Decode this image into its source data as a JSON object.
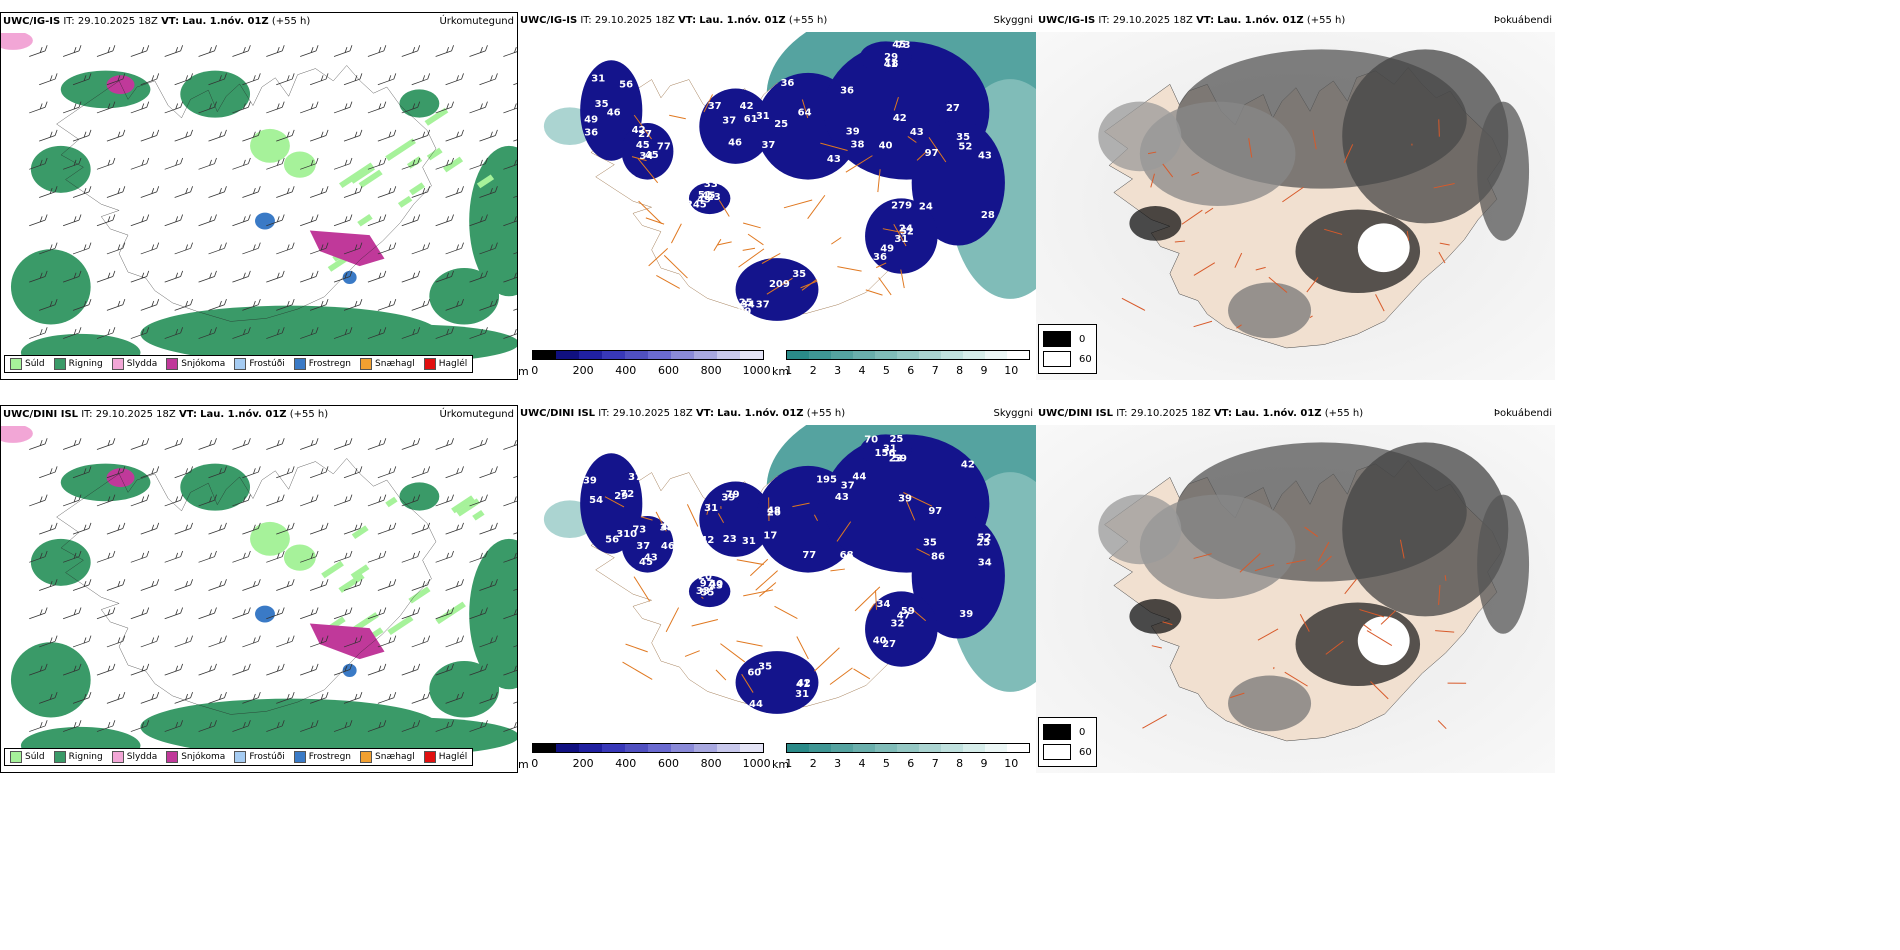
{
  "rows": [
    {
      "model": "UWC/IG-IS",
      "it_label": "IT:",
      "it": "29.10.2025 18Z",
      "vt_label": "VT:",
      "vt": "Lau. 1.nóv. 01Z",
      "lead": "(+55 h)",
      "cloud_labels": [
        "31",
        "77",
        "37",
        "43",
        "39",
        "97",
        "52",
        "37",
        "49",
        "73",
        "56",
        "42",
        "37",
        "36",
        "40",
        "35",
        "36",
        "35",
        "33",
        "41",
        "49",
        "45",
        "61",
        "64",
        "42",
        "28",
        "49",
        "34",
        "51",
        "45",
        "46",
        "34",
        "46",
        "36",
        "43",
        "52",
        "31",
        "39",
        "45",
        "29",
        "36",
        "27",
        "31",
        "25",
        "27",
        "43",
        "24",
        "25",
        "23",
        "18",
        "35",
        "45",
        "42",
        "37",
        "38",
        "24",
        "279",
        "209",
        "245"
      ]
    },
    {
      "model": "UWC/DINI ISL",
      "it_label": "IT:",
      "it": "29.10.2025 18Z",
      "vt_label": "VT:",
      "vt": "Lau. 1.nóv. 01Z",
      "lead": "(+55 h)",
      "cloud_labels": [
        "56",
        "45",
        "42",
        "77",
        "97",
        "86",
        "59",
        "44",
        "55",
        "70",
        "54",
        "38",
        "79",
        "48",
        "44",
        "34",
        "34",
        "35",
        "40",
        "59",
        "72",
        "73",
        "39",
        "37",
        "43",
        "35",
        "40",
        "60",
        "97",
        "31",
        "39",
        "43",
        "31",
        "26",
        "42",
        "52",
        "47",
        "41",
        "33",
        "25",
        "29",
        "37",
        "31",
        "195",
        "39",
        "25",
        "27",
        "42",
        "20",
        "23",
        "37",
        "49",
        "23",
        "17",
        "68",
        "39",
        "32",
        "31",
        "23",
        "156",
        "310",
        "46"
      ]
    }
  ],
  "panel_titles": {
    "precip": "Úrkomutegund",
    "cloud": "Skyggni",
    "fog": "Þokuábendi"
  },
  "precip_legend": [
    {
      "label": "Súld",
      "color": "#a6f29a"
    },
    {
      "label": "Rigning",
      "color": "#3a9a68"
    },
    {
      "label": "Slydda",
      "color": "#f2a6d6"
    },
    {
      "label": "Snjókoma",
      "color": "#c0399a"
    },
    {
      "label": "Frostúði",
      "color": "#a6ccf2"
    },
    {
      "label": "Frostregn",
      "color": "#3a7ac6"
    },
    {
      "label": "Snæhagl",
      "color": "#f2a030"
    },
    {
      "label": "Haglél",
      "color": "#e01010"
    }
  ],
  "cloudbase_scale": {
    "unit": "m",
    "ticks": [
      "0",
      "200",
      "400",
      "600",
      "800",
      "1000"
    ],
    "colors": [
      "#000000",
      "#101080",
      "#2020a0",
      "#3838b8",
      "#5050c0",
      "#6a6ad0",
      "#8a8ad8",
      "#a8a8e0",
      "#c8c8ec",
      "#e4e4f6"
    ]
  },
  "visibility_scale": {
    "unit": "km",
    "ticks": [
      "1",
      "2",
      "3",
      "4",
      "5",
      "6",
      "7",
      "8",
      "9",
      "10"
    ],
    "colors": [
      "#2a8a88",
      "#3f9694",
      "#55a3a0",
      "#6aafac",
      "#80bcb8",
      "#95c8c4",
      "#abd4d1",
      "#c0e1de",
      "#d6edea",
      "#ecf7f6",
      "#ffffff"
    ]
  },
  "fog_key": [
    {
      "label": "0",
      "color": "#000000"
    },
    {
      "label": "60",
      "color": "#ffffff"
    }
  ]
}
